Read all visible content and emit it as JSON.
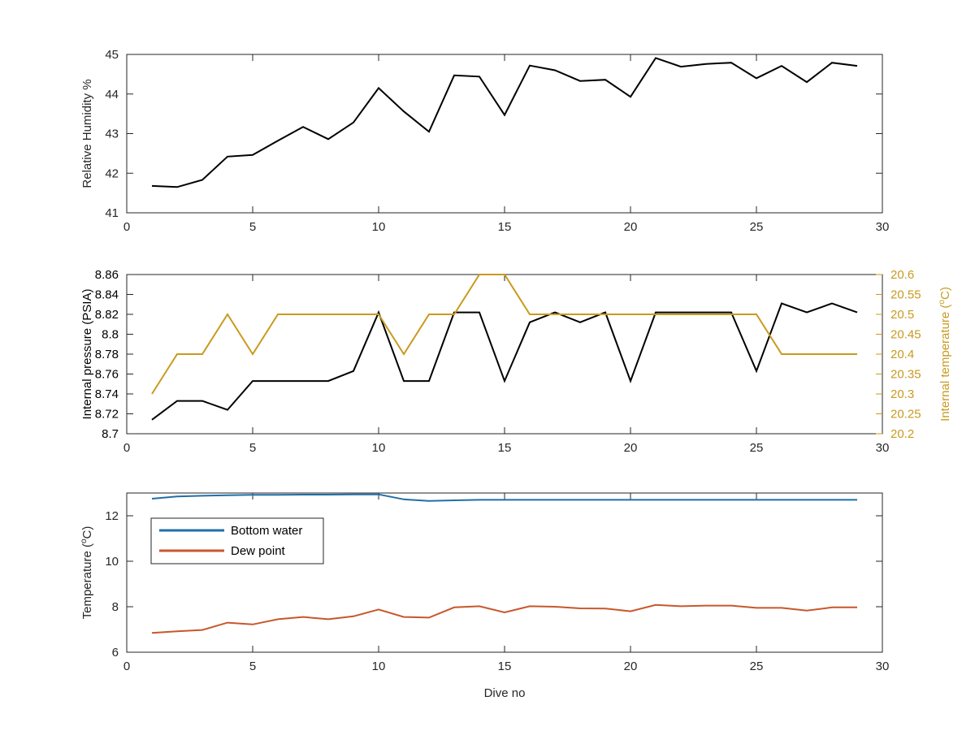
{
  "chart_data": [
    {
      "type": "line",
      "xlabel": "",
      "ylabel": "Relative Humidity %",
      "xlim": [
        0,
        30
      ],
      "ylim": [
        41,
        45
      ],
      "xticks": [
        0,
        5,
        10,
        15,
        20,
        25,
        30
      ],
      "yticks": [
        41,
        42,
        43,
        44,
        45
      ],
      "x": [
        1,
        2,
        3,
        4,
        5,
        6,
        7,
        8,
        9,
        10,
        11,
        12,
        13,
        14,
        15,
        16,
        17,
        18,
        19,
        20,
        21,
        22,
        23,
        24,
        25,
        26,
        27,
        28,
        29
      ],
      "series": [
        {
          "color": "#000000",
          "axis": "left",
          "values": [
            41.68,
            41.65,
            41.83,
            42.42,
            42.46,
            42.82,
            43.17,
            42.86,
            43.28,
            44.15,
            43.56,
            43.05,
            44.47,
            44.44,
            43.47,
            44.72,
            44.6,
            44.33,
            44.36,
            43.93,
            44.91,
            44.69,
            44.76,
            44.79,
            44.4,
            44.71,
            44.3,
            44.79,
            44.71
          ]
        }
      ],
      "grid": false
    },
    {
      "type": "line",
      "xlabel": "",
      "ylabel": "Internal pressure (PSIA)",
      "ylabel_right": "Internal temperature (",
      "ylabel_right_sup": "o",
      "ylabel_right_tail": "C)",
      "xlim": [
        0,
        30
      ],
      "ylim": [
        8.7,
        8.86
      ],
      "ylim_right": [
        20.2,
        20.6
      ],
      "xticks": [
        0,
        5,
        10,
        15,
        20,
        25,
        30
      ],
      "yticks": [
        "8.7",
        "8.72",
        "8.74",
        "8.76",
        "8.78",
        "8.8",
        "8.82",
        "8.84",
        "8.86"
      ],
      "yticks_right": [
        "20.2",
        "20.25",
        "20.3",
        "20.35",
        "20.4",
        "20.45",
        "20.5",
        "20.55",
        "20.6"
      ],
      "x": [
        1,
        2,
        3,
        4,
        5,
        6,
        7,
        8,
        9,
        10,
        11,
        12,
        13,
        14,
        15,
        16,
        17,
        18,
        19,
        20,
        21,
        22,
        23,
        24,
        25,
        26,
        27,
        28,
        29
      ],
      "series": [
        {
          "color": "#000000",
          "axis": "left",
          "values": [
            8.714,
            8.733,
            8.733,
            8.724,
            8.753,
            8.753,
            8.753,
            8.753,
            8.763,
            8.822,
            8.753,
            8.753,
            8.822,
            8.822,
            8.753,
            8.812,
            8.822,
            8.812,
            8.822,
            8.753,
            8.822,
            8.822,
            8.822,
            8.822,
            8.763,
            8.831,
            8.822,
            8.831,
            8.822
          ]
        },
        {
          "color": "#C99A1E",
          "axis": "right",
          "values": [
            20.3,
            20.4,
            20.4,
            20.5,
            20.4,
            20.5,
            20.5,
            20.5,
            20.5,
            20.5,
            20.4,
            20.5,
            20.5,
            20.6,
            20.6,
            20.5,
            20.5,
            20.5,
            20.5,
            20.5,
            20.5,
            20.5,
            20.5,
            20.5,
            20.5,
            20.4,
            20.4,
            20.4,
            20.4
          ]
        }
      ],
      "grid": false
    },
    {
      "type": "line",
      "xlabel": "Dive no",
      "ylabel": "Temperature (",
      "ylabel_sup": "o",
      "ylabel_tail": "C)",
      "xlim": [
        0,
        30
      ],
      "ylim": [
        6,
        13
      ],
      "xticks": [
        0,
        5,
        10,
        15,
        20,
        25,
        30
      ],
      "yticks": [
        6,
        8,
        10,
        12
      ],
      "x": [
        1,
        2,
        3,
        4,
        5,
        6,
        7,
        8,
        9,
        10,
        11,
        12,
        13,
        14,
        15,
        16,
        17,
        18,
        19,
        20,
        21,
        22,
        23,
        24,
        25,
        26,
        27,
        28,
        29
      ],
      "series": [
        {
          "name": "Bottom water",
          "color": "#1F6FA8",
          "values": [
            12.75,
            12.85,
            12.88,
            12.9,
            12.92,
            12.92,
            12.93,
            12.93,
            12.94,
            12.94,
            12.72,
            12.65,
            12.68,
            12.7,
            12.7,
            12.7,
            12.7,
            12.7,
            12.7,
            12.7,
            12.7,
            12.7,
            12.7,
            12.7,
            12.7,
            12.7,
            12.7,
            12.7,
            12.7
          ]
        },
        {
          "name": "Dew point",
          "color": "#C8572B",
          "values": [
            6.85,
            6.92,
            6.98,
            7.3,
            7.22,
            7.45,
            7.55,
            7.45,
            7.58,
            7.88,
            7.55,
            7.52,
            7.97,
            8.02,
            7.75,
            8.02,
            8.0,
            7.93,
            7.92,
            7.8,
            8.08,
            8.02,
            8.05,
            8.05,
            7.95,
            7.95,
            7.83,
            7.97,
            7.97
          ]
        }
      ],
      "legend": "top-left",
      "grid": false
    }
  ]
}
